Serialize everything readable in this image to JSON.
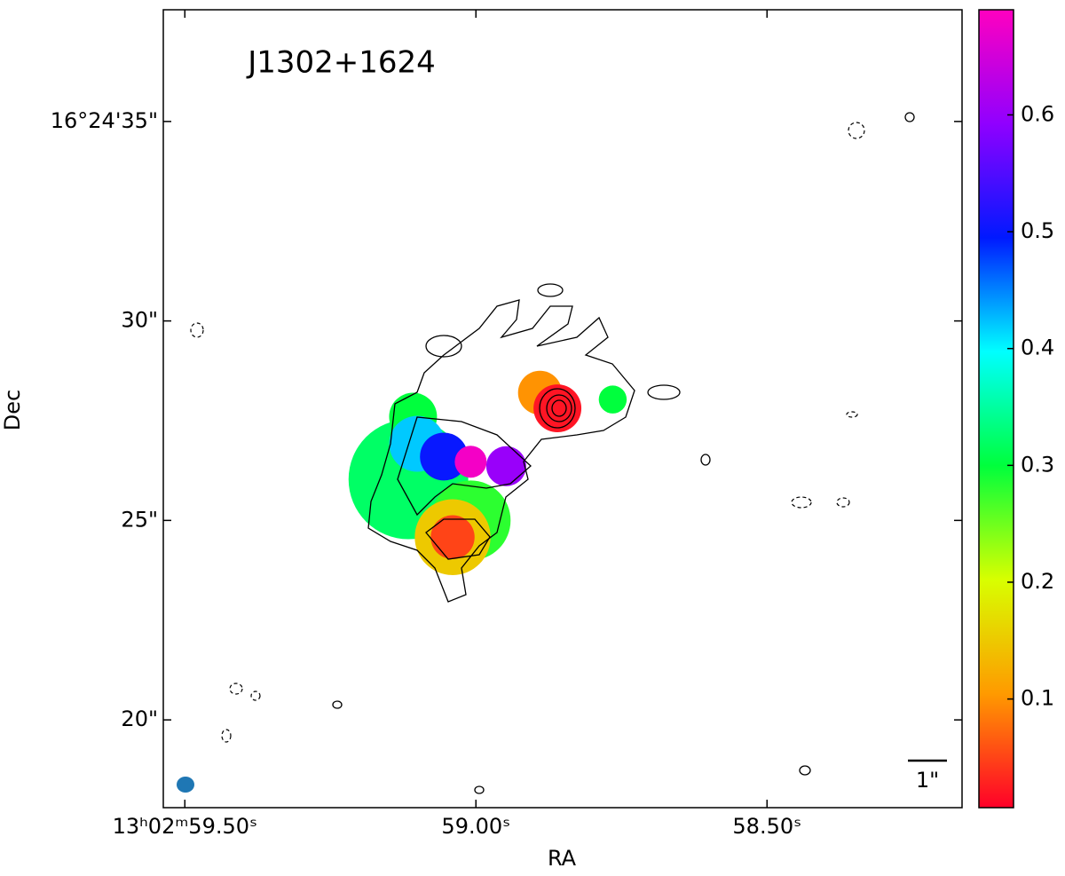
{
  "chart_data": {
    "type": "image",
    "title": "J1302+1624",
    "xlabel": "RA",
    "ylabel": "Dec",
    "xlim": [
      59.537,
      58.165
    ],
    "xticks": [
      {
        "value": 59.5,
        "label": "13ʰ02ᵐ59.50ˢ"
      },
      {
        "value": 59.0,
        "label": "59.00ˢ"
      },
      {
        "value": 58.5,
        "label": "58.50ˢ"
      }
    ],
    "ylim": [
      17.8,
      37.8
    ],
    "yticks": [
      {
        "value": 35,
        "label": "16°24'35\""
      },
      {
        "value": 30,
        "label": "30\""
      },
      {
        "value": 25,
        "label": "25\""
      },
      {
        "value": 20,
        "label": "20\""
      }
    ],
    "clim": [
      0.007,
      0.69
    ],
    "cticks": [
      0.1,
      0.2,
      0.3,
      0.4,
      0.5,
      0.6
    ],
    "colormap": [
      "#ff0029",
      "#ff9a00",
      "#d8ff00",
      "#00ff3c",
      "#00ffff",
      "#0019ff",
      "#9000ff",
      "#ff00bf"
    ],
    "regions": [
      {
        "ra": 59.116,
        "dec": 26.03,
        "r": 1.5,
        "value": 0.32
      },
      {
        "ra": 59.108,
        "dec": 27.6,
        "r": 0.6,
        "value": 0.3
      },
      {
        "ra": 59.009,
        "dec": 25.0,
        "r": 1.0,
        "value": 0.28
      },
      {
        "ra": 59.04,
        "dec": 24.58,
        "r": 0.95,
        "value": 0.15
      },
      {
        "ra": 59.04,
        "dec": 24.58,
        "r": 0.55,
        "value": 0.05
      },
      {
        "ra": 59.101,
        "dec": 26.92,
        "r": 0.7,
        "value": 0.42
      },
      {
        "ra": 59.055,
        "dec": 26.6,
        "r": 0.6,
        "value": 0.5
      },
      {
        "ra": 58.948,
        "dec": 26.36,
        "r": 0.5,
        "value": 0.6
      },
      {
        "ra": 59.009,
        "dec": 26.47,
        "r": 0.4,
        "value": 0.68
      },
      {
        "ra": 58.89,
        "dec": 28.2,
        "r": 0.55,
        "value": 0.1
      },
      {
        "ra": 58.86,
        "dec": 27.81,
        "r": 0.6,
        "value": 0.02
      },
      {
        "ra": 58.765,
        "dec": 28.03,
        "r": 0.35,
        "value": 0.3
      }
    ],
    "scalebar_label": "1\""
  }
}
